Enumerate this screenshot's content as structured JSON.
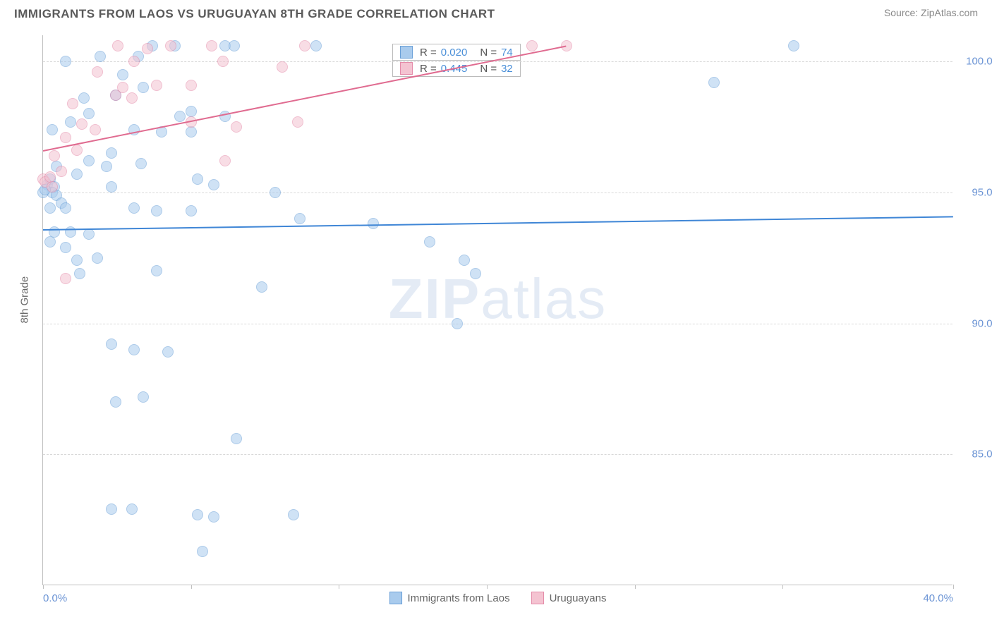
{
  "title": "IMMIGRANTS FROM LAOS VS URUGUAYAN 8TH GRADE CORRELATION CHART",
  "source": "Source: ZipAtlas.com",
  "y_axis_label": "8th Grade",
  "watermark_a": "ZIP",
  "watermark_b": "atlas",
  "chart": {
    "type": "scatter",
    "xlim": [
      0,
      40
    ],
    "ylim": [
      80,
      101
    ],
    "y_ticks": [
      85,
      90,
      95,
      100
    ],
    "y_tick_labels": [
      "85.0%",
      "90.0%",
      "95.0%",
      "100.0%"
    ],
    "x_ticks": [
      0,
      40
    ],
    "x_tick_labels": [
      "0.0%",
      "40.0%"
    ],
    "x_minor_ticks": [
      0,
      6.5,
      13,
      19.5,
      26,
      32.5,
      40
    ],
    "background_color": "#ffffff",
    "grid_color": "#d8d8d8",
    "marker_radius": 8,
    "marker_stroke_width": 1.5,
    "series": [
      {
        "name": "Immigrants from Laos",
        "fill": "#a9cbed",
        "stroke": "#6aa0d8",
        "fill_opacity": 0.55,
        "r_value": "0.020",
        "n_value": "74",
        "trend": {
          "x1": 0,
          "y1": 93.6,
          "x2": 40,
          "y2": 94.1,
          "color": "#3f86d6",
          "width": 2
        },
        "points": [
          [
            0.2,
            95.3
          ],
          [
            0.3,
            95.5
          ],
          [
            0.5,
            95.2
          ],
          [
            0.4,
            95.0
          ],
          [
            0.6,
            94.9
          ],
          [
            0.8,
            94.6
          ],
          [
            0.3,
            94.4
          ],
          [
            1.0,
            94.4
          ],
          [
            0.0,
            95.0
          ],
          [
            0.1,
            95.1
          ],
          [
            0.5,
            93.5
          ],
          [
            1.2,
            93.5
          ],
          [
            2.0,
            93.4
          ],
          [
            1.5,
            92.4
          ],
          [
            2.4,
            92.5
          ],
          [
            0.3,
            93.1
          ],
          [
            1.0,
            92.9
          ],
          [
            3.0,
            95.2
          ],
          [
            4.8,
            100.6
          ],
          [
            4.2,
            100.2
          ],
          [
            5.8,
            100.6
          ],
          [
            8.0,
            100.6
          ],
          [
            8.4,
            100.6
          ],
          [
            12.0,
            100.6
          ],
          [
            29.5,
            99.2
          ],
          [
            4.0,
            97.4
          ],
          [
            5.2,
            97.3
          ],
          [
            6.5,
            97.3
          ],
          [
            6.8,
            95.5
          ],
          [
            7.5,
            95.3
          ],
          [
            10.2,
            95.0
          ],
          [
            11.3,
            94.0
          ],
          [
            14.5,
            93.8
          ],
          [
            4.0,
            94.4
          ],
          [
            5.0,
            94.3
          ],
          [
            6.5,
            94.3
          ],
          [
            1.6,
            91.9
          ],
          [
            5.0,
            92.0
          ],
          [
            9.6,
            91.4
          ],
          [
            17.0,
            93.1
          ],
          [
            18.5,
            92.4
          ],
          [
            3.0,
            89.2
          ],
          [
            4.0,
            89.0
          ],
          [
            5.5,
            88.9
          ],
          [
            3.2,
            87.0
          ],
          [
            4.4,
            87.2
          ],
          [
            8.5,
            85.6
          ],
          [
            18.2,
            90.0
          ],
          [
            19.0,
            91.9
          ],
          [
            3.0,
            82.9
          ],
          [
            3.9,
            82.9
          ],
          [
            6.8,
            82.7
          ],
          [
            7.5,
            82.6
          ],
          [
            11.0,
            82.7
          ],
          [
            7.0,
            81.3
          ],
          [
            2.0,
            96.2
          ],
          [
            3.0,
            96.5
          ],
          [
            4.3,
            96.1
          ],
          [
            6.0,
            97.9
          ],
          [
            6.5,
            98.1
          ],
          [
            8.0,
            97.9
          ],
          [
            0.6,
            96.0
          ],
          [
            1.5,
            95.7
          ],
          [
            2.8,
            96.0
          ],
          [
            2.0,
            98.0
          ],
          [
            4.4,
            99.0
          ],
          [
            1.0,
            100.0
          ],
          [
            2.5,
            100.2
          ],
          [
            3.5,
            99.5
          ],
          [
            0.4,
            97.4
          ],
          [
            1.2,
            97.7
          ],
          [
            1.8,
            98.6
          ],
          [
            3.2,
            98.7
          ],
          [
            33.0,
            100.6
          ]
        ]
      },
      {
        "name": "Uruguayans",
        "fill": "#f4c3d1",
        "stroke": "#e48aa8",
        "fill_opacity": 0.55,
        "r_value": "0.445",
        "n_value": "32",
        "trend": {
          "x1": 0,
          "y1": 96.6,
          "x2": 23,
          "y2": 100.6,
          "color": "#e06b90",
          "width": 2
        },
        "points": [
          [
            0.0,
            95.5
          ],
          [
            0.1,
            95.4
          ],
          [
            0.3,
            95.6
          ],
          [
            0.5,
            96.4
          ],
          [
            1.0,
            97.1
          ],
          [
            1.5,
            96.6
          ],
          [
            1.7,
            97.6
          ],
          [
            2.3,
            97.4
          ],
          [
            2.4,
            99.6
          ],
          [
            3.2,
            98.7
          ],
          [
            3.5,
            99.0
          ],
          [
            3.3,
            100.6
          ],
          [
            3.9,
            98.6
          ],
          [
            4.0,
            100.0
          ],
          [
            4.6,
            100.5
          ],
          [
            5.0,
            99.1
          ],
          [
            5.6,
            100.6
          ],
          [
            6.5,
            99.1
          ],
          [
            6.5,
            97.7
          ],
          [
            7.4,
            100.6
          ],
          [
            7.9,
            100.0
          ],
          [
            8.0,
            96.2
          ],
          [
            8.5,
            97.5
          ],
          [
            10.5,
            99.8
          ],
          [
            11.2,
            97.7
          ],
          [
            11.5,
            100.6
          ],
          [
            21.5,
            100.6
          ],
          [
            23.0,
            100.6
          ],
          [
            1.0,
            91.7
          ],
          [
            0.4,
            95.2
          ],
          [
            0.8,
            95.8
          ],
          [
            1.3,
            98.4
          ]
        ]
      }
    ]
  },
  "bottom_legend": [
    {
      "label": "Immigrants from Laos",
      "fill": "#a9cbed",
      "stroke": "#6aa0d8"
    },
    {
      "label": "Uruguayans",
      "fill": "#f4c3d1",
      "stroke": "#e48aa8"
    }
  ]
}
